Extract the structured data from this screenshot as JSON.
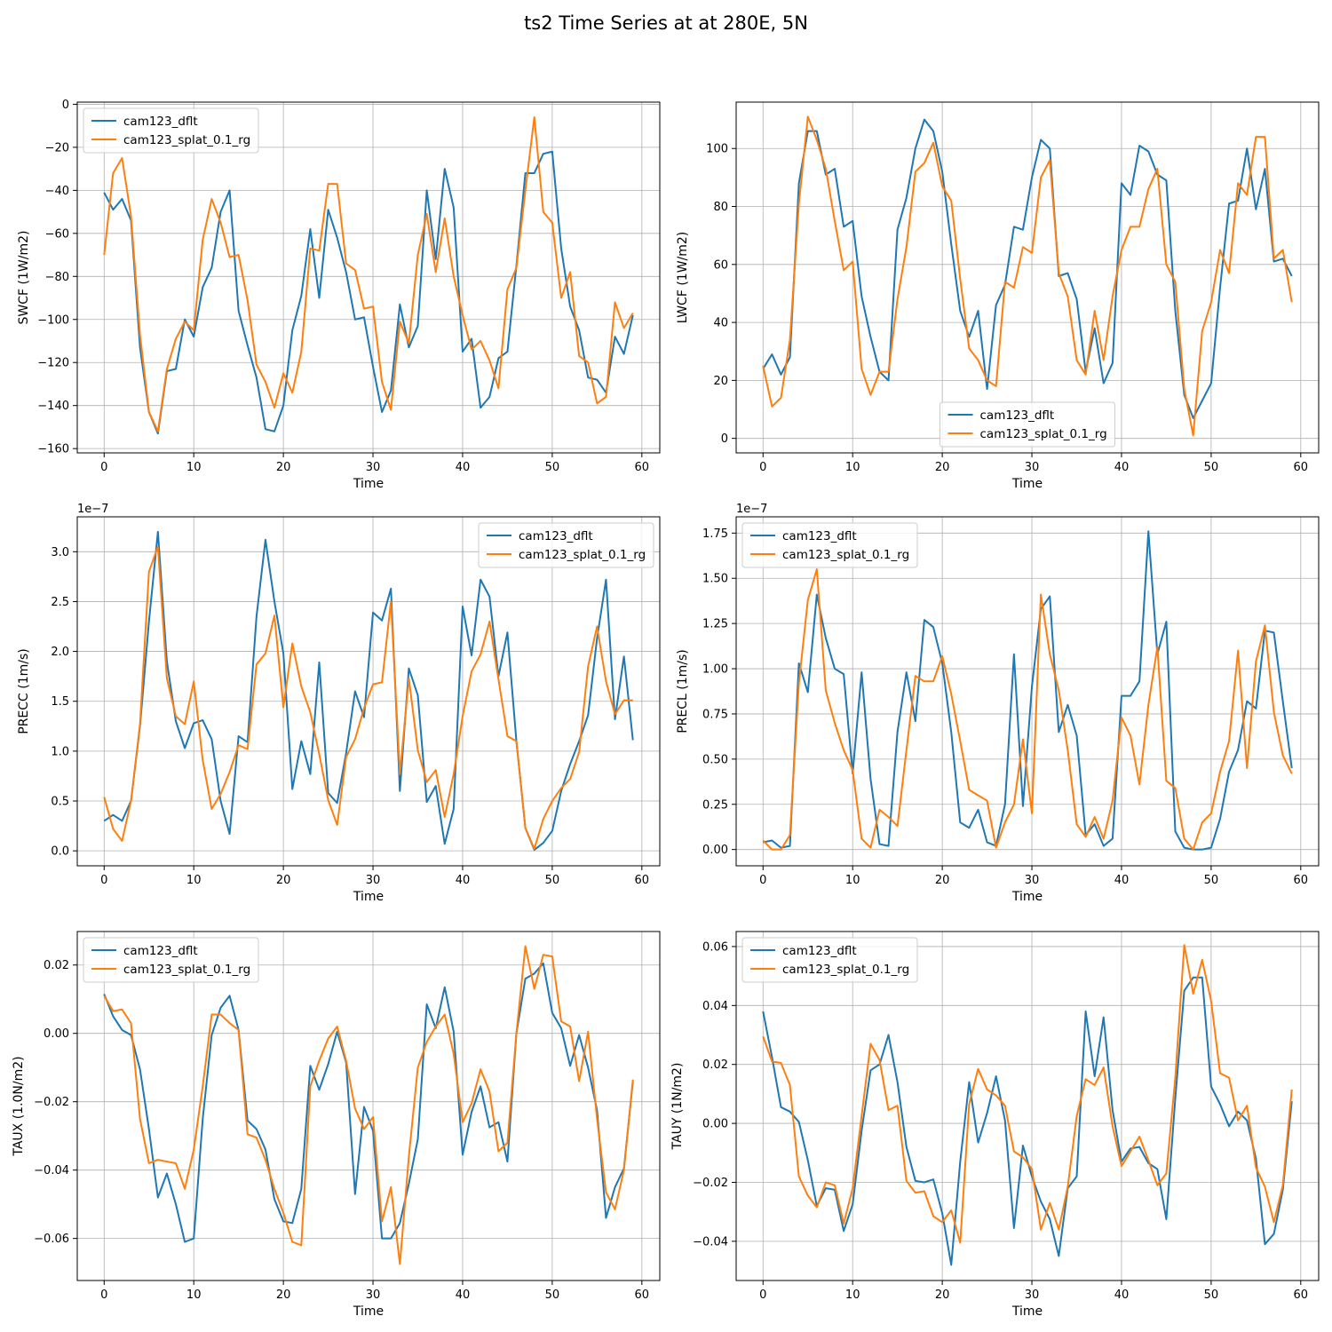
{
  "title": "ts2 Time Series at at 280E, 5N",
  "series_names": [
    "cam123_dflt",
    "cam123_splat_0.1_rg"
  ],
  "colors": {
    "dflt": "#1f77b4",
    "splat": "#ff7f0e",
    "grid": "#b0b0b0",
    "axes": "#000000"
  },
  "chart_data": [
    {
      "type": "line",
      "xlabel": "Time",
      "ylabel": "SWCF (1W/m2)",
      "xlim": [
        -3,
        62
      ],
      "ylim": [
        -162,
        1
      ],
      "xticks": [
        0,
        10,
        20,
        30,
        40,
        50,
        60
      ],
      "yticks": [
        0,
        -20,
        -40,
        -60,
        -80,
        -100,
        -120,
        -140,
        -160
      ],
      "ytick_labels": [
        "0",
        "−20",
        "−40",
        "−60",
        "−80",
        "−100",
        "−120",
        "−140",
        "−160"
      ],
      "exponent": "",
      "grid": true,
      "legend": "upper-left",
      "series": [
        {
          "name": "cam123_dflt",
          "values": [
            -41,
            -49,
            -44,
            -54,
            -113,
            -143,
            -153,
            -124,
            -123,
            -100,
            -108,
            -85,
            -76,
            -50,
            -40,
            -96,
            -112,
            -127,
            -151,
            -152,
            -140,
            -105,
            -89,
            -58,
            -90,
            -49,
            -62,
            -78,
            -100,
            -99,
            -122,
            -143,
            -133,
            -93,
            -113,
            -103,
            -40,
            -72,
            -30,
            -48,
            -115,
            -109,
            -141,
            -136,
            -118,
            -115,
            -75,
            -32,
            -32,
            -23,
            -22,
            -67,
            -94,
            -105,
            -127,
            -128,
            -134,
            -108,
            -116,
            -98
          ]
        },
        {
          "name": "cam123_splat_0.1_rg",
          "values": [
            -70,
            -32,
            -25,
            -52,
            -107,
            -143,
            -152,
            -123,
            -109,
            -101,
            -105,
            -63,
            -44,
            -55,
            -71,
            -70,
            -91,
            -121,
            -129,
            -141,
            -125,
            -134,
            -115,
            -67,
            -68,
            -37,
            -37,
            -74,
            -77,
            -95,
            -94,
            -129,
            -142,
            -101,
            -111,
            -70,
            -51,
            -78,
            -53,
            -80,
            -98,
            -114,
            -110,
            -119,
            -132,
            -86,
            -76,
            -40,
            -6,
            -50,
            -55,
            -90,
            -78,
            -117,
            -120,
            -139,
            -136,
            -92,
            -104,
            -97
          ]
        }
      ]
    },
    {
      "type": "line",
      "xlabel": "Time",
      "ylabel": "LWCF (1W/m2)",
      "xlim": [
        -3,
        62
      ],
      "ylim": [
        -5,
        116
      ],
      "xticks": [
        0,
        10,
        20,
        30,
        40,
        50,
        60
      ],
      "yticks": [
        0,
        20,
        40,
        60,
        80,
        100
      ],
      "ytick_labels": [
        "0",
        "20",
        "40",
        "60",
        "80",
        "100"
      ],
      "exponent": "",
      "grid": true,
      "legend": "lower-center",
      "series": [
        {
          "name": "cam123_dflt",
          "values": [
            24,
            29,
            22,
            28,
            88,
            106,
            106,
            91,
            93,
            73,
            75,
            49,
            35,
            23,
            20,
            72,
            83,
            100,
            110,
            106,
            92,
            67,
            44,
            35,
            44,
            17,
            46,
            53,
            73,
            72,
            90,
            103,
            100,
            56,
            57,
            48,
            23,
            38,
            19,
            26,
            88,
            84,
            101,
            99,
            91,
            89,
            44,
            15,
            7,
            13,
            19,
            52,
            81,
            82,
            100,
            79,
            93,
            61,
            62,
            56
          ]
        },
        {
          "name": "cam123_splat_0.1_rg",
          "values": [
            25,
            11,
            14,
            34,
            81,
            111,
            103,
            93,
            75,
            58,
            61,
            24,
            15,
            23,
            23,
            48,
            66,
            92,
            95,
            102,
            87,
            82,
            55,
            31,
            27,
            20,
            18,
            54,
            52,
            66,
            64,
            90,
            96,
            57,
            49,
            27,
            22,
            44,
            27,
            49,
            65,
            73,
            73,
            86,
            93,
            60,
            54,
            17,
            1,
            37,
            47,
            65,
            57,
            88,
            84,
            104,
            104,
            62,
            65,
            47
          ]
        }
      ]
    },
    {
      "type": "line",
      "xlabel": "Time",
      "ylabel": "PRECC (1m/s)",
      "xlim": [
        -3,
        62
      ],
      "ylim": [
        -0.15,
        3.35
      ],
      "xticks": [
        0,
        10,
        20,
        30,
        40,
        50,
        60
      ],
      "yticks": [
        0,
        0.5,
        1,
        1.5,
        2,
        2.5,
        3
      ],
      "ytick_labels": [
        "0.0",
        "0.5",
        "1.0",
        "1.5",
        "2.0",
        "2.5",
        "3.0"
      ],
      "exponent": "1e−7",
      "grid": true,
      "legend": "upper-right",
      "series": [
        {
          "name": "cam123_dflt",
          "values": [
            0.3,
            0.36,
            0.3,
            0.5,
            1.25,
            2.3,
            3.2,
            1.9,
            1.3,
            1.03,
            1.28,
            1.31,
            1.12,
            0.5,
            0.17,
            1.15,
            1.09,
            2.35,
            3.12,
            2.5,
            1.98,
            0.62,
            1.1,
            0.77,
            1.89,
            0.58,
            0.48,
            0.98,
            1.6,
            1.34,
            2.39,
            2.31,
            2.63,
            0.6,
            1.83,
            1.56,
            0.49,
            0.65,
            0.07,
            0.42,
            2.45,
            1.96,
            2.72,
            2.55,
            1.75,
            2.19,
            1.1,
            0.23,
            0.01,
            0.08,
            0.2,
            0.6,
            0.87,
            1.1,
            1.36,
            2.13,
            2.72,
            1.32,
            1.95,
            1.11
          ]
        },
        {
          "name": "cam123_splat_0.1_rg",
          "values": [
            0.54,
            0.22,
            0.1,
            0.5,
            1.27,
            2.8,
            3.05,
            1.73,
            1.35,
            1.27,
            1.7,
            0.91,
            0.42,
            0.57,
            0.79,
            1.06,
            1.02,
            1.87,
            1.98,
            2.36,
            1.44,
            2.08,
            1.65,
            1.39,
            0.97,
            0.51,
            0.26,
            0.94,
            1.12,
            1.43,
            1.67,
            1.69,
            2.5,
            0.77,
            1.73,
            1.01,
            0.69,
            0.81,
            0.34,
            0.77,
            1.35,
            1.8,
            1.97,
            2.3,
            1.72,
            1.15,
            1.1,
            0.23,
            0.02,
            0.32,
            0.5,
            0.63,
            0.72,
            0.99,
            1.85,
            2.25,
            1.7,
            1.37,
            1.51,
            1.51
          ]
        }
      ]
    },
    {
      "type": "line",
      "xlabel": "Time",
      "ylabel": "PRECL (1m/s)",
      "xlim": [
        -3,
        62
      ],
      "ylim": [
        -0.09,
        1.84
      ],
      "xticks": [
        0,
        10,
        20,
        30,
        40,
        50,
        60
      ],
      "yticks": [
        0,
        0.25,
        0.5,
        0.75,
        1,
        1.25,
        1.5,
        1.75
      ],
      "ytick_labels": [
        "0.00",
        "0.25",
        "0.50",
        "0.75",
        "1.00",
        "1.25",
        "1.50",
        "1.75"
      ],
      "exponent": "1e−7",
      "grid": true,
      "legend": "upper-left",
      "series": [
        {
          "name": "cam123_dflt",
          "values": [
            0.04,
            0.05,
            0.01,
            0.02,
            1.03,
            0.87,
            1.41,
            1.17,
            1.0,
            0.97,
            0.42,
            0.98,
            0.39,
            0.03,
            0.02,
            0.65,
            0.98,
            0.71,
            1.27,
            1.23,
            1.03,
            0.65,
            0.15,
            0.12,
            0.22,
            0.04,
            0.02,
            0.25,
            1.08,
            0.24,
            0.9,
            1.33,
            1.4,
            0.65,
            0.8,
            0.63,
            0.08,
            0.14,
            0.02,
            0.06,
            0.85,
            0.85,
            0.93,
            1.76,
            1.08,
            1.26,
            0.1,
            0.01,
            0.0,
            0.0,
            0.01,
            0.17,
            0.43,
            0.55,
            0.82,
            0.78,
            1.21,
            1.2,
            0.82,
            0.45
          ]
        },
        {
          "name": "cam123_splat_0.1_rg",
          "values": [
            0.05,
            0.0,
            0.0,
            0.08,
            0.92,
            1.38,
            1.55,
            0.88,
            0.7,
            0.55,
            0.44,
            0.06,
            0.01,
            0.22,
            0.18,
            0.13,
            0.55,
            0.96,
            0.93,
            0.93,
            1.07,
            0.86,
            0.6,
            0.33,
            0.3,
            0.27,
            0.01,
            0.15,
            0.25,
            0.61,
            0.2,
            1.41,
            1.08,
            0.88,
            0.55,
            0.14,
            0.07,
            0.18,
            0.06,
            0.27,
            0.73,
            0.63,
            0.36,
            0.8,
            1.12,
            0.38,
            0.34,
            0.06,
            0.0,
            0.15,
            0.2,
            0.43,
            0.6,
            1.1,
            0.45,
            1.04,
            1.24,
            0.76,
            0.52,
            0.42
          ]
        }
      ]
    },
    {
      "type": "line",
      "xlabel": "Time",
      "ylabel": "TAUX (1.0N/m2)",
      "xlim": [
        -3,
        62
      ],
      "ylim": [
        -0.0723,
        0.0298
      ],
      "xticks": [
        0,
        10,
        20,
        30,
        40,
        50,
        60
      ],
      "yticks": [
        0.02,
        0,
        -0.02,
        -0.04,
        -0.06
      ],
      "ytick_labels": [
        "0.02",
        "0.00",
        "−0.02",
        "−0.04",
        "−0.06"
      ],
      "exponent": "",
      "grid": true,
      "legend": "upper-left",
      "series": [
        {
          "name": "cam123_dflt",
          "values": [
            0.0115,
            0.005,
            0.001,
            -0.0005,
            -0.0105,
            -0.028,
            -0.048,
            -0.041,
            -0.05,
            -0.061,
            -0.06,
            -0.025,
            -0.0005,
            0.0075,
            0.011,
            0.001,
            -0.0255,
            -0.028,
            -0.034,
            -0.0485,
            -0.055,
            -0.0555,
            -0.0455,
            -0.0095,
            -0.0165,
            -0.009,
            0.0005,
            -0.0085,
            -0.047,
            -0.0215,
            -0.0285,
            -0.06,
            -0.06,
            -0.0555,
            -0.044,
            -0.031,
            0.0085,
            0.0015,
            0.0135,
            0.0005,
            -0.0355,
            -0.023,
            -0.0155,
            -0.0275,
            -0.026,
            -0.0375,
            0.0,
            0.016,
            0.0175,
            0.0205,
            0.006,
            0.0015,
            -0.0095,
            -0.0005,
            -0.01,
            -0.0225,
            -0.054,
            -0.045,
            -0.0395,
            -0.014
          ]
        },
        {
          "name": "cam123_splat_0.1_rg",
          "values": [
            0.011,
            0.0065,
            0.007,
            0.003,
            -0.025,
            -0.038,
            -0.037,
            -0.0375,
            -0.038,
            -0.0455,
            -0.034,
            -0.0155,
            0.0055,
            0.0055,
            0.003,
            0.001,
            -0.0295,
            -0.0305,
            -0.037,
            -0.0455,
            -0.0525,
            -0.061,
            -0.062,
            -0.0155,
            -0.008,
            -0.0015,
            0.002,
            -0.008,
            -0.022,
            -0.028,
            -0.0245,
            -0.055,
            -0.045,
            -0.0675,
            -0.036,
            -0.01,
            -0.0025,
            0.002,
            0.0055,
            -0.006,
            -0.026,
            -0.0205,
            -0.0105,
            -0.017,
            -0.0345,
            -0.032,
            0.0,
            0.0255,
            0.013,
            0.023,
            0.0225,
            0.0035,
            0.002,
            -0.014,
            0.0005,
            -0.025,
            -0.0465,
            -0.0515,
            -0.04,
            -0.0135
          ]
        }
      ]
    },
    {
      "type": "line",
      "xlabel": "Time",
      "ylabel": "TAUY (1N/m2)",
      "xlim": [
        -3,
        62
      ],
      "ylim": [
        -0.0533,
        0.0651
      ],
      "xticks": [
        0,
        10,
        20,
        30,
        40,
        50,
        60
      ],
      "yticks": [
        0.06,
        0.04,
        0.02,
        0,
        -0.02,
        -0.04
      ],
      "ytick_labels": [
        "0.06",
        "0.04",
        "0.02",
        "0.00",
        "−0.02",
        "−0.04"
      ],
      "exponent": "",
      "grid": true,
      "legend": "upper-left",
      "series": [
        {
          "name": "cam123_dflt",
          "values": [
            0.038,
            0.0225,
            0.0055,
            0.004,
            0.0005,
            -0.0125,
            -0.028,
            -0.022,
            -0.0225,
            -0.0365,
            -0.0275,
            -0.0025,
            0.018,
            0.02,
            0.03,
            0.014,
            -0.008,
            -0.0195,
            -0.02,
            -0.019,
            -0.0305,
            -0.048,
            -0.013,
            0.014,
            -0.0065,
            0.0035,
            0.016,
            0.001,
            -0.0355,
            -0.0075,
            -0.018,
            -0.0265,
            -0.0325,
            -0.045,
            -0.022,
            -0.018,
            0.038,
            0.016,
            0.036,
            0.0045,
            -0.013,
            -0.0085,
            -0.008,
            -0.0135,
            -0.0155,
            -0.0325,
            0.0085,
            0.045,
            0.0495,
            0.0495,
            0.0125,
            0.0065,
            -0.001,
            0.004,
            0.001,
            -0.012,
            -0.041,
            -0.0375,
            -0.0225,
            0.0075
          ]
        },
        {
          "name": "cam123_splat_0.1_rg",
          "values": [
            0.0295,
            0.021,
            0.0205,
            0.013,
            -0.018,
            -0.0245,
            -0.0285,
            -0.02,
            -0.021,
            -0.034,
            -0.022,
            0.0025,
            0.027,
            0.0215,
            0.0045,
            0.006,
            -0.0195,
            -0.0235,
            -0.023,
            -0.0315,
            -0.0335,
            -0.0295,
            -0.0405,
            0.0065,
            0.0185,
            0.0115,
            0.0095,
            0.006,
            -0.0095,
            -0.0115,
            -0.0155,
            -0.036,
            -0.027,
            -0.036,
            -0.0215,
            0.0025,
            0.015,
            0.013,
            0.019,
            -0.001,
            -0.0145,
            -0.0095,
            -0.0045,
            -0.0125,
            -0.021,
            -0.017,
            0.0155,
            0.0605,
            0.044,
            0.0555,
            0.0415,
            0.017,
            0.0155,
            0.001,
            0.006,
            -0.015,
            -0.0215,
            -0.0335,
            -0.021,
            0.0115
          ]
        }
      ]
    }
  ]
}
